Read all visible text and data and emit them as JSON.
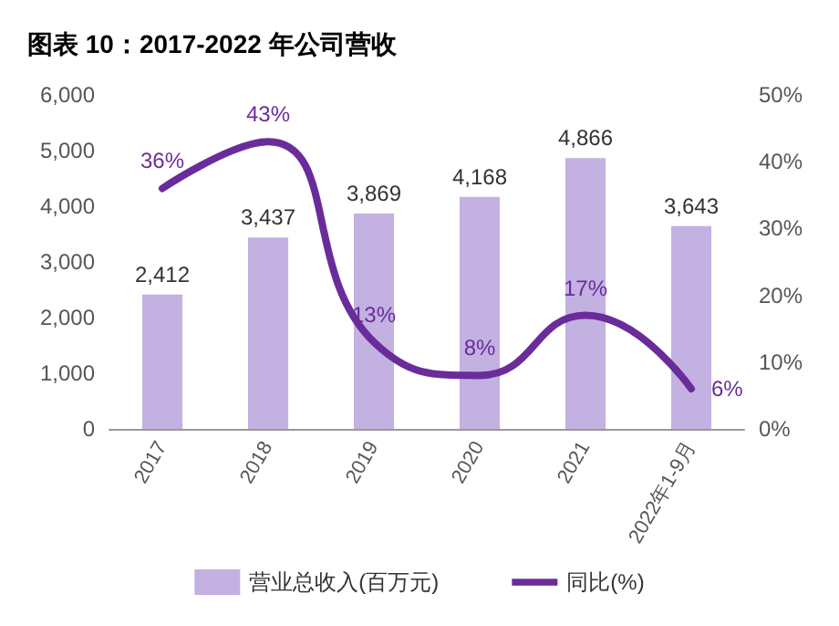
{
  "chart_data": {
    "type": "bar",
    "title": "图表 10：2017-2022 年公司营收",
    "categories": [
      "2017",
      "2018",
      "2019",
      "2020",
      "2021",
      "2022年1-9月"
    ],
    "series": [
      {
        "name": "营业总收入(百万元)",
        "color": "#c3b1e1",
        "values": [
          2412,
          3437,
          3869,
          4168,
          4866,
          3643
        ],
        "value_labels": [
          "2,412",
          "3,437",
          "3,869",
          "4,168",
          "4,866",
          "3,643"
        ]
      },
      {
        "name": "同比(%)",
        "type": "line",
        "axis": "y2",
        "color": "#6a2c9a",
        "values": [
          36,
          43,
          13,
          8,
          17,
          6
        ],
        "value_labels": [
          "36%",
          "43%",
          "13%",
          "8%",
          "17%",
          "6%"
        ]
      }
    ],
    "ylim": [
      0,
      6000
    ],
    "yticks": [
      {
        "value": 0,
        "label": "0"
      },
      {
        "value": 1000,
        "label": "1,000"
      },
      {
        "value": 2000,
        "label": "2,000"
      },
      {
        "value": 3000,
        "label": "3,000"
      },
      {
        "value": 4000,
        "label": "4,000"
      },
      {
        "value": 5000,
        "label": "5,000"
      },
      {
        "value": 6000,
        "label": "6,000"
      }
    ],
    "y2lim": [
      0,
      50
    ],
    "y2ticks": [
      {
        "value": 0,
        "label": "0%"
      },
      {
        "value": 10,
        "label": "10%"
      },
      {
        "value": 20,
        "label": "20%"
      },
      {
        "value": 30,
        "label": "30%"
      },
      {
        "value": 40,
        "label": "40%"
      },
      {
        "value": 50,
        "label": "50%"
      }
    ],
    "grid": false,
    "legend": "bottom",
    "marker": "none",
    "line_style": "solid"
  }
}
